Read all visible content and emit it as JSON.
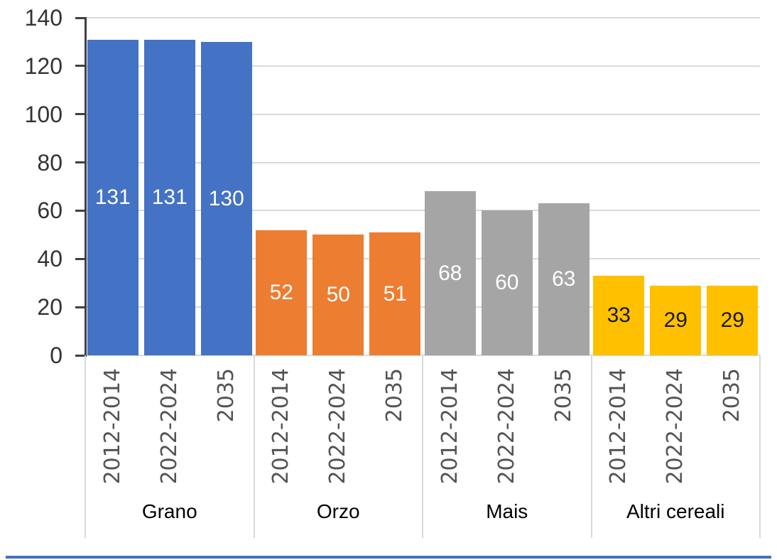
{
  "chart_data": {
    "type": "bar",
    "title": "",
    "categories": [
      "Grano",
      "Orzo",
      "Mais",
      "Altri cereali"
    ],
    "series_labels": [
      "2012-2014",
      "2022-2024",
      "2035"
    ],
    "groups": [
      {
        "label": "Grano",
        "bar_color": "#4472C4",
        "value_label_color": "#FFFFFF",
        "values": [
          131,
          131,
          130
        ]
      },
      {
        "label": "Orzo",
        "bar_color": "#ED7D31",
        "value_label_color": "#FFFFFF",
        "values": [
          52,
          50,
          51
        ]
      },
      {
        "label": "Mais",
        "bar_color": "#A5A5A5",
        "value_label_color": "#FFFFFF",
        "values": [
          68,
          60,
          63
        ]
      },
      {
        "label": "Altri cereali",
        "bar_color": "#FFC000",
        "value_label_color": "#1A1A1A",
        "values": [
          33,
          29,
          29
        ]
      }
    ],
    "y_axis": {
      "min": 0,
      "max": 140,
      "step": 20,
      "ticks": [
        0,
        20,
        40,
        60,
        80,
        100,
        120,
        140
      ]
    },
    "grid": true,
    "legend": "none",
    "bar_label_position": "center",
    "colors": {
      "gridline": "#D9D9D9",
      "separator": "#D9D9D9",
      "axis": "#404040",
      "y_label": "#333333",
      "x_label": "#545454",
      "group_label": "#000000",
      "background": "#FFFFFF",
      "bottom_rule": "#4472C4"
    }
  }
}
